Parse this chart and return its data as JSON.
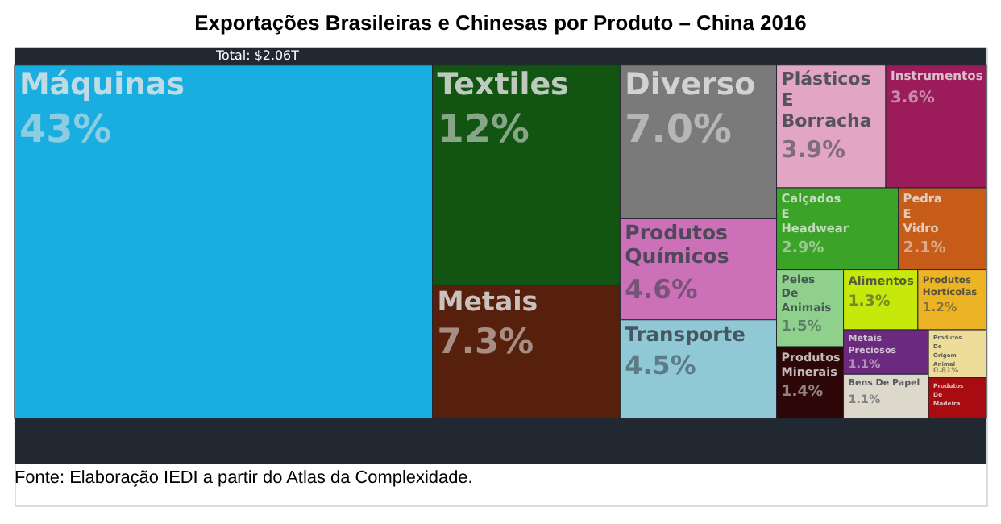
{
  "chart_data": {
    "type": "other",
    "title": "Exportações Brasileiras e Chinesas por Produto – China 2016",
    "subtitle": "Total: $2.06T",
    "categories": [
      "Máquinas",
      "Textiles",
      "Metais",
      "Diverso",
      "Produtos Químicos",
      "Transporte",
      "Plásticos E Borracha",
      "Instrumentos",
      "Calçados E Headwear",
      "Pedra E Vidro",
      "Peles De Animais",
      "Produtos Minerais",
      "Alimentos",
      "Produtos Hortícolas",
      "Metais Preciosos",
      "Bens De Papel",
      "Produtos De Origem Animal",
      "Produtos De Madeira"
    ],
    "values": [
      43,
      12,
      7.3,
      7.0,
      4.6,
      4.5,
      3.9,
      3.6,
      2.9,
      2.1,
      1.5,
      1.4,
      1.3,
      1.2,
      1.1,
      1.1,
      0.81,
      null
    ],
    "value_labels": [
      "43%",
      "12%",
      "7.3%",
      "7.0%",
      "4.6%",
      "4.5%",
      "3.9%",
      "3.6%",
      "2.9%",
      "2.1%",
      "1.5%",
      "1.4%",
      "1.3%",
      "1.2%",
      "1.1%",
      "1.1%",
      "0.81%",
      null
    ],
    "colors": [
      "#1aaddf",
      "#125512",
      "#56200c",
      "#7a7a7a",
      "#cc70b8",
      "#90c8d6",
      "#e2a6c4",
      "#9c1b5a",
      "#3aa328",
      "#c75c18",
      "#8fd18c",
      "#2d0608",
      "#c6e80a",
      "#ecb424",
      "#6b2a80",
      "#ddd8cc",
      "#eedc9a",
      "#a80c10"
    ],
    "annotations": [
      "Fonte: Elaboração IEDI a partir do Atlas da Complexidade."
    ]
  }
}
